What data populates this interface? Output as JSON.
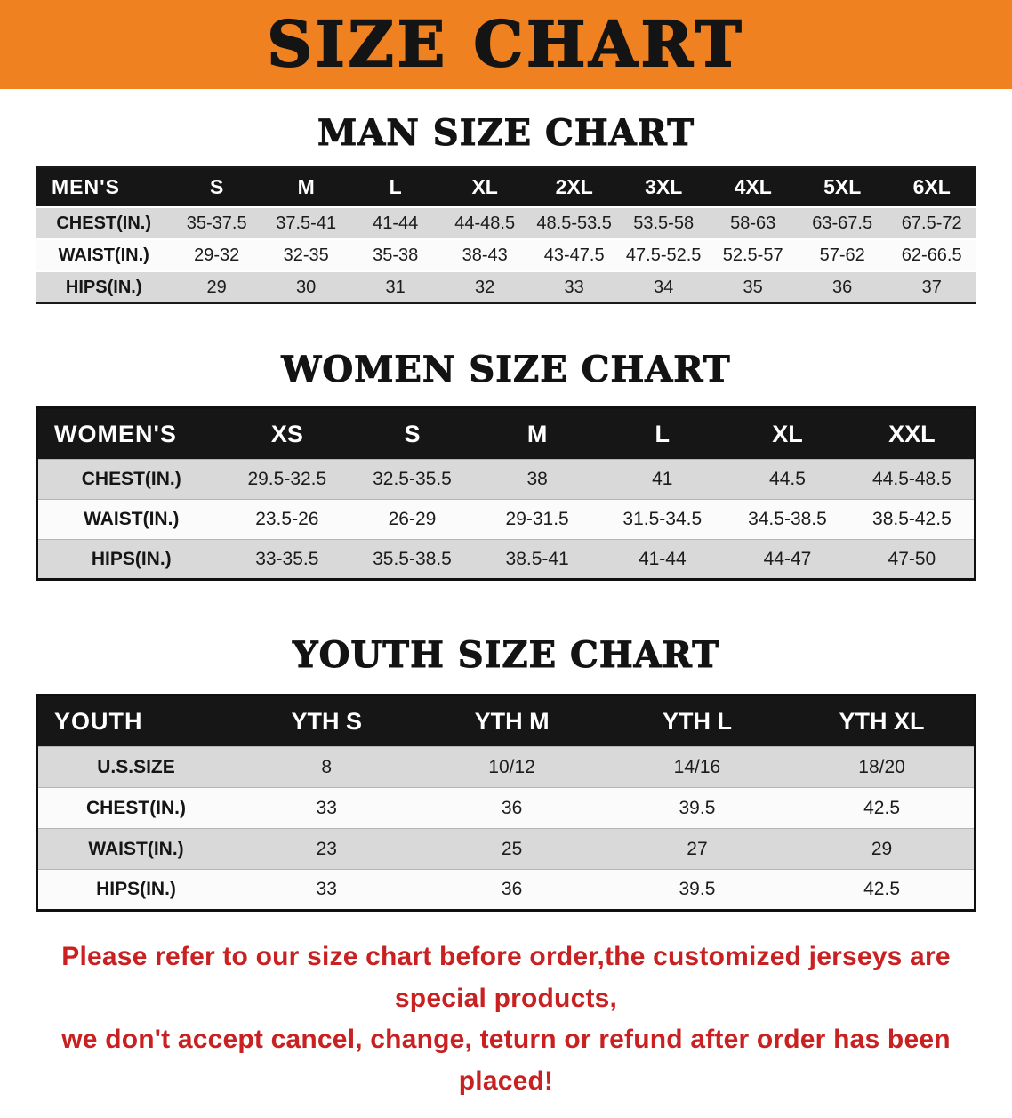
{
  "banner": {
    "title": "SIZE CHART"
  },
  "colors": {
    "banner_background": "#F08120",
    "table_header_background": "#161616",
    "shaded_row": "#D9D9D9",
    "disclaimer_red": "#C92121"
  },
  "sections": {
    "men": {
      "heading": "MAN SIZE CHART",
      "table": {
        "header": [
          "MEN'S",
          "S",
          "M",
          "L",
          "XL",
          "2XL",
          "3XL",
          "4XL",
          "5XL",
          "6XL"
        ],
        "rows": [
          [
            "CHEST(IN.)",
            "35-37.5",
            "37.5-41",
            "41-44",
            "44-48.5",
            "48.5-53.5",
            "53.5-58",
            "58-63",
            "63-67.5",
            "67.5-72"
          ],
          [
            "WAIST(IN.)",
            "29-32",
            "32-35",
            "35-38",
            "38-43",
            "43-47.5",
            "47.5-52.5",
            "52.5-57",
            "57-62",
            "62-66.5"
          ],
          [
            "HIPS(IN.)",
            "29",
            "30",
            "31",
            "32",
            "33",
            "34",
            "35",
            "36",
            "37"
          ]
        ]
      }
    },
    "women": {
      "heading": "WOMEN SIZE CHART",
      "table": {
        "header": [
          "WOMEN'S",
          "XS",
          "S",
          "M",
          "L",
          "XL",
          "XXL"
        ],
        "rows": [
          [
            "CHEST(IN.)",
            "29.5-32.5",
            "32.5-35.5",
            "38",
            "41",
            "44.5",
            "44.5-48.5"
          ],
          [
            "WAIST(IN.)",
            "23.5-26",
            "26-29",
            "29-31.5",
            "31.5-34.5",
            "34.5-38.5",
            "38.5-42.5"
          ],
          [
            "HIPS(IN.)",
            "33-35.5",
            "35.5-38.5",
            "38.5-41",
            "41-44",
            "44-47",
            "47-50"
          ]
        ]
      }
    },
    "youth": {
      "heading": "YOUTH SIZE CHART",
      "table": {
        "header": [
          "YOUTH",
          "YTH S",
          "YTH M",
          "YTH L",
          "YTH XL"
        ],
        "rows": [
          [
            "U.S.SIZE",
            "8",
            "10/12",
            "14/16",
            "18/20"
          ],
          [
            "CHEST(IN.)",
            "33",
            "36",
            "39.5",
            "42.5"
          ],
          [
            "WAIST(IN.)",
            "23",
            "25",
            "27",
            "29"
          ],
          [
            "HIPS(IN.)",
            "33",
            "36",
            "39.5",
            "42.5"
          ]
        ]
      }
    }
  },
  "disclaimer": {
    "line1": "Please refer to our size chart before order,the customized jerseys are special products,",
    "line2": "we don't accept cancel, change, teturn or refund after order has been placed!"
  }
}
